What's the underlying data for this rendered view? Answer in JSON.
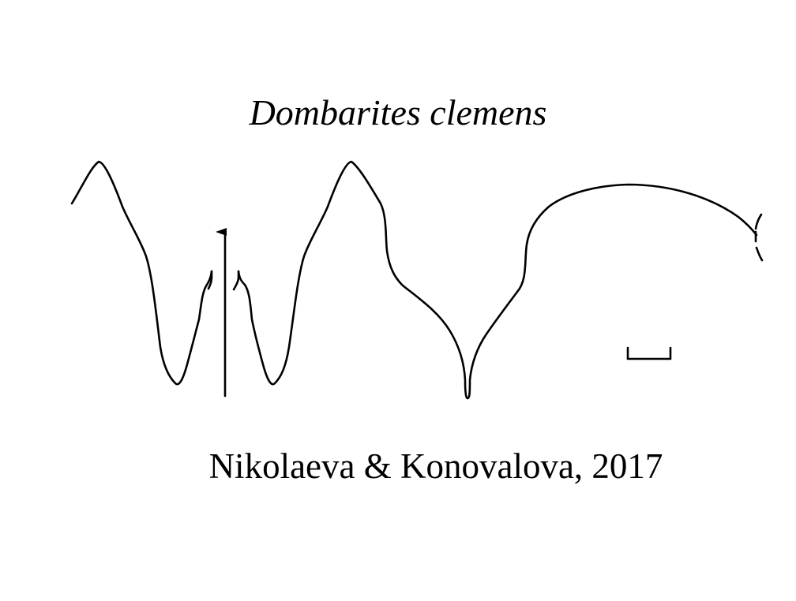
{
  "title": "Dombarites clemens",
  "citation": "Nikolaeva & Konovalova, 2017",
  "colors": {
    "ink": "#000000",
    "background": "#ffffff"
  }
}
